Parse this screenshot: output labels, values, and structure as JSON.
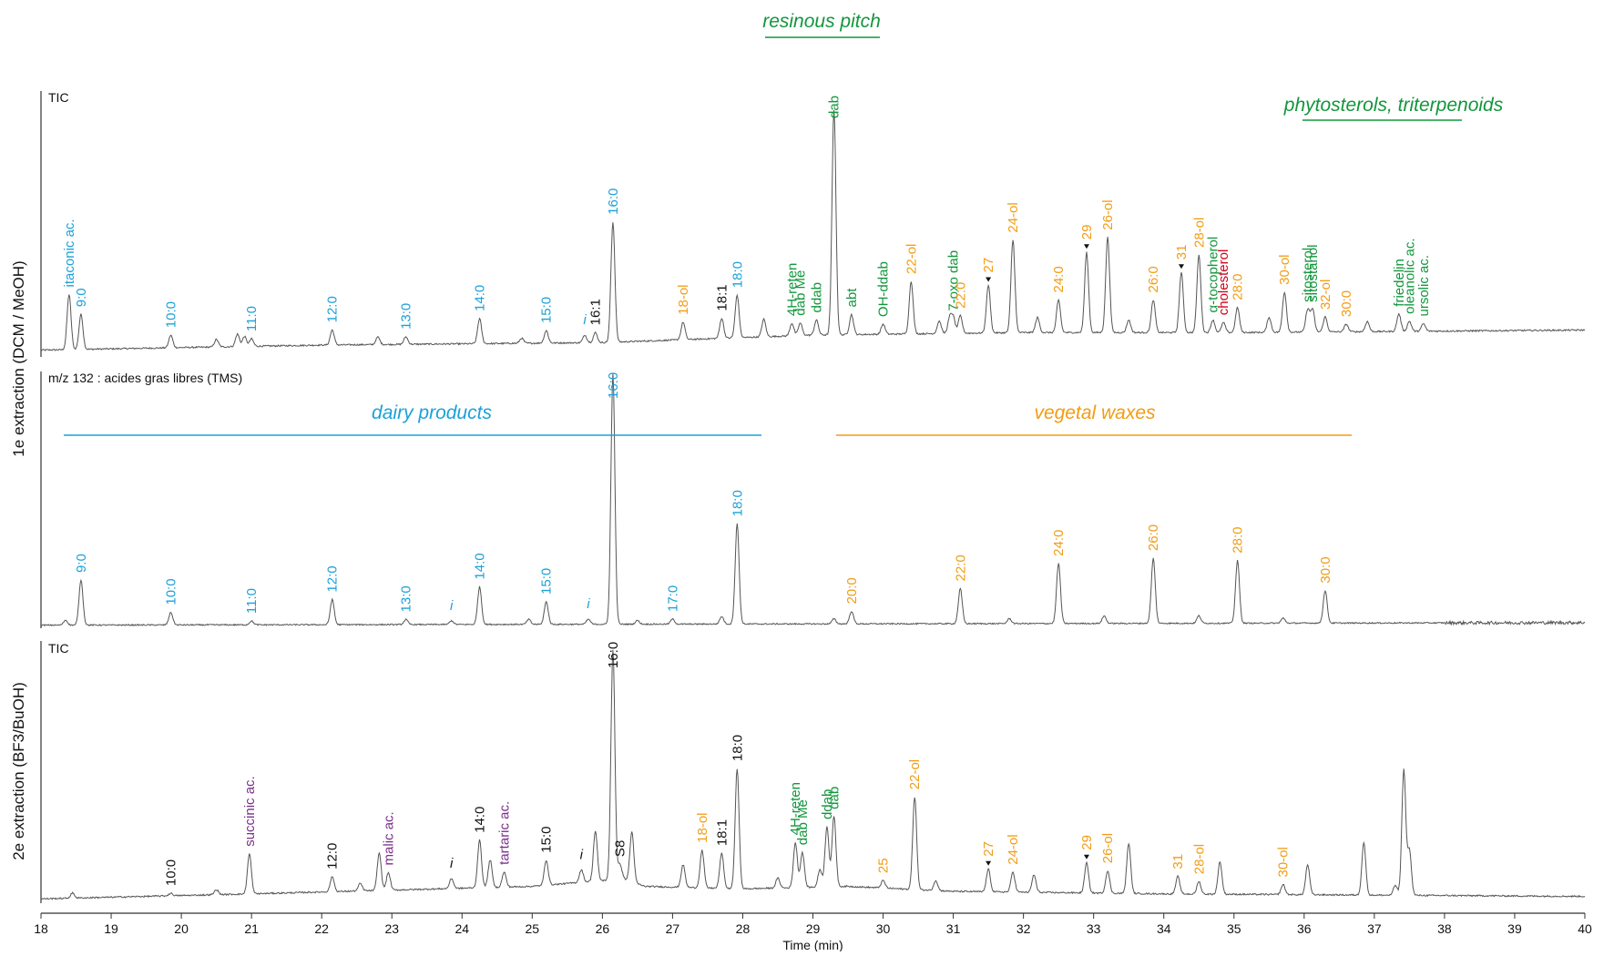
{
  "colors": {
    "trace": "#555555",
    "axis": "#333333",
    "dairy": "#1ba1d8",
    "pitch": "#12963c",
    "waxes": "#f29c14",
    "acids": "#7b2e8c",
    "cholesterol": "#d0021b",
    "black": "#111111"
  },
  "chart_data": {
    "type": "line",
    "x_axis": {
      "label": "Time (min)",
      "range": [
        18,
        40
      ],
      "ticks": [
        18,
        19,
        20,
        21,
        22,
        23,
        24,
        25,
        26,
        27,
        28,
        29,
        30,
        31,
        32,
        33,
        34,
        35,
        36,
        37,
        38,
        39,
        40
      ],
      "tick_labels": [
        "18",
        "19",
        "20",
        "21",
        "22",
        "23",
        "24",
        "25",
        "26",
        "27",
        "28",
        "29",
        "30",
        "31",
        "32",
        "33",
        "34",
        "35",
        "36",
        "37",
        "38",
        "39",
        "40"
      ]
    },
    "y_axis_labels": {
      "first_extraction": "1e extraction (DCM / MeOH)",
      "second_extraction": "2e extraction (BF3/BuOH)"
    },
    "group_titles": {
      "resinous_pitch": "resinous pitch",
      "phytosterols": "phytosterols, triterpenoids",
      "dairy": "dairy products",
      "waxes": "vegetal waxes"
    },
    "panels": [
      {
        "id": "p1",
        "title": "TIC",
        "baseline": [
          [
            18,
            2
          ],
          [
            22,
            4
          ],
          [
            26,
            5
          ],
          [
            29,
            8
          ],
          [
            32,
            9
          ],
          [
            35,
            9
          ],
          [
            40,
            10
          ]
        ],
        "peaks": [
          {
            "t": 18.4,
            "h": 22,
            "label": "itaconic ac.",
            "color": "dairy"
          },
          {
            "t": 18.57,
            "h": 14,
            "label": "9:0",
            "color": "dairy"
          },
          {
            "t": 19.85,
            "h": 5,
            "label": "10:0",
            "color": "dairy"
          },
          {
            "t": 20.5,
            "h": 3
          },
          {
            "t": 20.8,
            "h": 5
          },
          {
            "t": 20.9,
            "h": 4
          },
          {
            "t": 21.0,
            "h": 3,
            "label": "11:0",
            "color": "dairy"
          },
          {
            "t": 22.15,
            "h": 6,
            "label": "12:0",
            "color": "dairy"
          },
          {
            "t": 22.8,
            "h": 3
          },
          {
            "t": 23.2,
            "h": 3,
            "label": "13:0",
            "color": "dairy"
          },
          {
            "t": 24.25,
            "h": 10,
            "label": "14:0",
            "color": "dairy"
          },
          {
            "t": 24.85,
            "h": 2
          },
          {
            "t": 25.2,
            "h": 5,
            "label": "15:0",
            "color": "dairy"
          },
          {
            "t": 25.75,
            "h": 3,
            "label": "i",
            "color": "dairy",
            "italic": true
          },
          {
            "t": 25.9,
            "h": 4,
            "label": "16:1",
            "color": "black"
          },
          {
            "t": 26.15,
            "h": 48,
            "label": "16:0",
            "color": "dairy"
          },
          {
            "t": 27.15,
            "h": 7,
            "label": "18-ol",
            "color": "waxes"
          },
          {
            "t": 27.7,
            "h": 8,
            "label": "18:1",
            "color": "black"
          },
          {
            "t": 27.92,
            "h": 17,
            "label": "18:0",
            "color": "dairy"
          },
          {
            "t": 28.3,
            "h": 7
          },
          {
            "t": 28.7,
            "h": 5,
            "label": "4H-reten",
            "color": "pitch"
          },
          {
            "t": 28.82,
            "h": 5,
            "label": "dab Me",
            "color": "pitch"
          },
          {
            "t": 29.05,
            "h": 6,
            "label": "ddab",
            "color": "pitch"
          },
          {
            "t": 29.3,
            "h": 90,
            "label": "dab",
            "color": "pitch"
          },
          {
            "t": 29.55,
            "h": 8,
            "label": "abt",
            "color": "pitch"
          },
          {
            "t": 30.0,
            "h": 4,
            "label": "OH-ddab",
            "color": "pitch"
          },
          {
            "t": 30.4,
            "h": 21,
            "label": "22-ol",
            "color": "waxes"
          },
          {
            "t": 30.8,
            "h": 5
          },
          {
            "t": 30.95,
            "h": 6
          },
          {
            "t": 31.0,
            "h": 6,
            "label": "7-oxo dab",
            "color": "pitch"
          },
          {
            "t": 31.1,
            "h": 7,
            "label": "22:0",
            "color": "waxes"
          },
          {
            "t": 31.5,
            "h": 19,
            "label": "27",
            "color": "waxes",
            "marker": true
          },
          {
            "t": 31.85,
            "h": 37,
            "label": "24-ol",
            "color": "waxes"
          },
          {
            "t": 32.2,
            "h": 6
          },
          {
            "t": 32.5,
            "h": 13,
            "label": "24:0",
            "color": "waxes"
          },
          {
            "t": 32.9,
            "h": 32,
            "label": "29",
            "color": "waxes",
            "marker": true
          },
          {
            "t": 33.2,
            "h": 38,
            "label": "26-ol",
            "color": "waxes"
          },
          {
            "t": 33.5,
            "h": 5
          },
          {
            "t": 33.85,
            "h": 13,
            "label": "26:0",
            "color": "waxes"
          },
          {
            "t": 34.25,
            "h": 24,
            "label": "31",
            "color": "waxes",
            "marker": true
          },
          {
            "t": 34.5,
            "h": 31,
            "label": "28-ol",
            "color": "waxes"
          },
          {
            "t": 34.7,
            "h": 5,
            "label": "α-tocopherol",
            "color": "pitch"
          },
          {
            "t": 34.85,
            "h": 4,
            "label": "cholesterol",
            "color": "cholesterol"
          },
          {
            "t": 35.05,
            "h": 10,
            "label": "28:0",
            "color": "waxes"
          },
          {
            "t": 35.5,
            "h": 6
          },
          {
            "t": 35.72,
            "h": 16,
            "label": "30-ol",
            "color": "waxes"
          },
          {
            "t": 36.05,
            "h": 9,
            "label": "sitosterol",
            "color": "pitch"
          },
          {
            "t": 36.12,
            "h": 9,
            "label": "sitostanol",
            "color": "pitch"
          },
          {
            "t": 36.3,
            "h": 6,
            "label": "32-ol",
            "color": "waxes"
          },
          {
            "t": 36.6,
            "h": 3,
            "label": "30:0",
            "color": "waxes"
          },
          {
            "t": 36.9,
            "h": 4
          },
          {
            "t": 37.35,
            "h": 7,
            "label": "friedelin",
            "color": "pitch"
          },
          {
            "t": 37.5,
            "h": 4,
            "label": "oleanolic ac.",
            "color": "pitch"
          },
          {
            "t": 37.7,
            "h": 3,
            "label": "ursolic ac.",
            "color": "pitch"
          }
        ]
      },
      {
        "id": "p2",
        "title": "m/z 132 : acides gras libres (TMS)",
        "baseline": [
          [
            18,
            0.5
          ],
          [
            40,
            1.5
          ]
        ],
        "peaks": [
          {
            "t": 18.35,
            "h": 2
          },
          {
            "t": 18.57,
            "h": 18,
            "label": "9:0",
            "color": "dairy"
          },
          {
            "t": 19.85,
            "h": 5,
            "label": "10:0",
            "color": "dairy"
          },
          {
            "t": 21.0,
            "h": 1.5,
            "label": "11:0",
            "color": "dairy"
          },
          {
            "t": 22.15,
            "h": 10,
            "label": "12:0",
            "color": "dairy"
          },
          {
            "t": 23.2,
            "h": 2,
            "label": "13:0",
            "color": "dairy"
          },
          {
            "t": 23.85,
            "h": 1.5,
            "label": "i",
            "color": "dairy",
            "italic": true
          },
          {
            "t": 24.25,
            "h": 15,
            "label": "14:0",
            "color": "dairy"
          },
          {
            "t": 24.95,
            "h": 2
          },
          {
            "t": 25.2,
            "h": 9,
            "label": "15:0",
            "color": "dairy"
          },
          {
            "t": 25.8,
            "h": 2,
            "label": "i",
            "color": "dairy",
            "italic": true
          },
          {
            "t": 26.15,
            "h": 100,
            "label": "16:0",
            "color": "dairy"
          },
          {
            "t": 26.5,
            "h": 1.5
          },
          {
            "t": 27.0,
            "h": 2,
            "label": "17:0",
            "color": "dairy"
          },
          {
            "t": 27.7,
            "h": 3
          },
          {
            "t": 27.92,
            "h": 40,
            "label": "18:0",
            "color": "dairy"
          },
          {
            "t": 29.3,
            "h": 2
          },
          {
            "t": 29.55,
            "h": 5,
            "label": "20:0",
            "color": "waxes"
          },
          {
            "t": 31.1,
            "h": 14,
            "label": "22:0",
            "color": "waxes"
          },
          {
            "t": 31.8,
            "h": 2
          },
          {
            "t": 32.5,
            "h": 24,
            "label": "24:0",
            "color": "waxes"
          },
          {
            "t": 33.15,
            "h": 3
          },
          {
            "t": 33.85,
            "h": 26,
            "label": "26:0",
            "color": "waxes"
          },
          {
            "t": 34.5,
            "h": 3
          },
          {
            "t": 35.05,
            "h": 25,
            "label": "28:0",
            "color": "waxes"
          },
          {
            "t": 35.7,
            "h": 2
          },
          {
            "t": 36.3,
            "h": 13,
            "label": "30:0",
            "color": "waxes"
          }
        ]
      },
      {
        "id": "p3",
        "title": "TIC",
        "baseline": [
          [
            18,
            1
          ],
          [
            21,
            3
          ],
          [
            25,
            6
          ],
          [
            26.3,
            9
          ],
          [
            26.6,
            6
          ],
          [
            28,
            5
          ],
          [
            29.5,
            6
          ],
          [
            31,
            4
          ],
          [
            34,
            3
          ],
          [
            40,
            2
          ]
        ],
        "peaks": [
          {
            "t": 18.45,
            "h": 2
          },
          {
            "t": 19.85,
            "h": 1,
            "label": "10:0",
            "color": "black"
          },
          {
            "t": 20.5,
            "h": 2
          },
          {
            "t": 20.97,
            "h": 16,
            "label": "succinic ac.",
            "color": "acids"
          },
          {
            "t": 22.15,
            "h": 6,
            "label": "12:0",
            "color": "black"
          },
          {
            "t": 22.55,
            "h": 3
          },
          {
            "t": 22.82,
            "h": 15
          },
          {
            "t": 22.95,
            "h": 7,
            "label": "malic ac.",
            "color": "acids"
          },
          {
            "t": 23.85,
            "h": 4,
            "label": "i",
            "color": "black",
            "italic": true
          },
          {
            "t": 24.25,
            "h": 19,
            "label": "14:0",
            "color": "black"
          },
          {
            "t": 24.4,
            "h": 11
          },
          {
            "t": 24.6,
            "h": 6,
            "label": "tartaric ac.",
            "color": "acids"
          },
          {
            "t": 25.2,
            "h": 10,
            "label": "15:0",
            "color": "black"
          },
          {
            "t": 25.7,
            "h": 5,
            "label": "i",
            "color": "black",
            "italic": true
          },
          {
            "t": 25.9,
            "h": 20
          },
          {
            "t": 26.15,
            "h": 92,
            "label": "16:0",
            "color": "black"
          },
          {
            "t": 26.25,
            "h": 6,
            "label": "S8",
            "color": "black"
          },
          {
            "t": 26.42,
            "h": 20
          },
          {
            "t": 27.15,
            "h": 9
          },
          {
            "t": 27.42,
            "h": 15,
            "label": "18-ol",
            "color": "waxes"
          },
          {
            "t": 27.7,
            "h": 14,
            "label": "18:1",
            "color": "black"
          },
          {
            "t": 27.92,
            "h": 48,
            "label": "18:0",
            "color": "black"
          },
          {
            "t": 28.5,
            "h": 4
          },
          {
            "t": 28.75,
            "h": 18,
            "label": "4H-reten",
            "color": "pitch"
          },
          {
            "t": 28.85,
            "h": 14,
            "label": "dab Me",
            "color": "pitch"
          },
          {
            "t": 29.1,
            "h": 7
          },
          {
            "t": 29.2,
            "h": 24,
            "label": "ddab",
            "color": "pitch"
          },
          {
            "t": 29.3,
            "h": 28,
            "label": "dab",
            "color": "pitch"
          },
          {
            "t": 30.0,
            "h": 3,
            "label": "25",
            "color": "waxes"
          },
          {
            "t": 30.45,
            "h": 37,
            "label": "22-ol",
            "color": "waxes"
          },
          {
            "t": 30.75,
            "h": 4
          },
          {
            "t": 31.5,
            "h": 9,
            "label": "27",
            "color": "waxes",
            "marker": true
          },
          {
            "t": 31.85,
            "h": 8,
            "label": "24-ol",
            "color": "waxes"
          },
          {
            "t": 32.15,
            "h": 7
          },
          {
            "t": 32.9,
            "h": 12,
            "label": "29",
            "color": "waxes",
            "marker": true
          },
          {
            "t": 33.2,
            "h": 9,
            "label": "26-ol",
            "color": "waxes"
          },
          {
            "t": 33.5,
            "h": 20
          },
          {
            "t": 34.2,
            "h": 7,
            "label": "31",
            "color": "waxes"
          },
          {
            "t": 34.5,
            "h": 5,
            "label": "28-ol",
            "color": "waxes"
          },
          {
            "t": 34.8,
            "h": 13
          },
          {
            "t": 35.7,
            "h": 4,
            "label": "30-ol",
            "color": "waxes"
          },
          {
            "t": 36.05,
            "h": 12
          },
          {
            "t": 36.85,
            "h": 21
          },
          {
            "t": 37.3,
            "h": 4
          },
          {
            "t": 37.42,
            "h": 50
          },
          {
            "t": 37.5,
            "h": 18
          }
        ]
      }
    ]
  }
}
